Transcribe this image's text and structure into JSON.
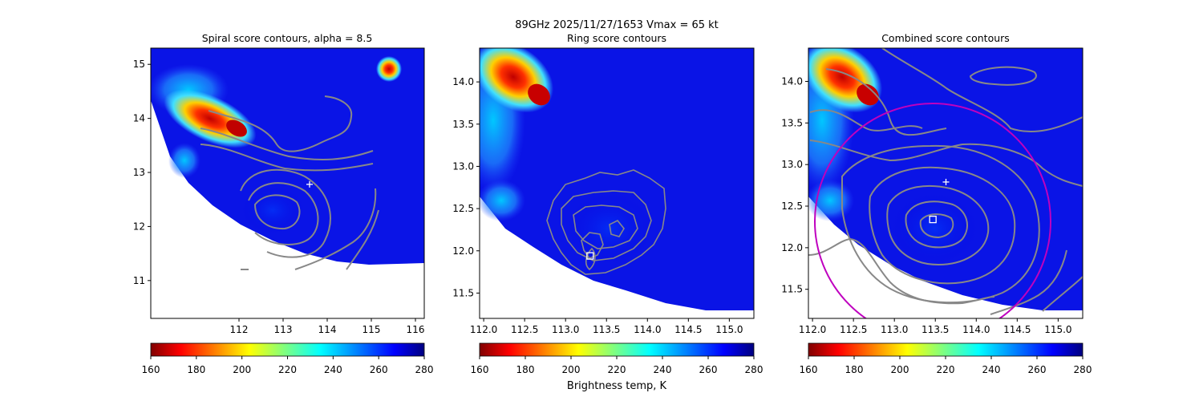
{
  "figure": {
    "suptitle_line1": "89GHz  2025/11/27/1653    Vmax = 65 kt",
    "colorbar_label": "Brightness temp, K"
  },
  "chart_data": [
    {
      "type": "heatmap",
      "title": "Spiral score contours, alpha =  8.5",
      "xlim": [
        110.0,
        116.2
      ],
      "ylim": [
        10.3,
        15.3
      ],
      "xticks": [
        112,
        113,
        114,
        115,
        116
      ],
      "yticks": [
        11,
        12,
        13,
        14,
        15
      ],
      "colormap": "jet",
      "colorbar": {
        "range": [
          160,
          280
        ],
        "ticks": [
          160,
          180,
          200,
          220,
          240,
          260,
          280
        ]
      },
      "markers": [
        {
          "symbol": "+",
          "x": 113.6,
          "y": 12.78,
          "color": "#ffffff"
        }
      ],
      "contour_color": "#808080"
    },
    {
      "type": "heatmap",
      "title": "Ring score contours",
      "xlim": [
        111.95,
        115.3
      ],
      "ylim": [
        11.2,
        14.4
      ],
      "xticks": [
        112.0,
        112.5,
        113.0,
        113.5,
        114.0,
        114.5,
        115.0
      ],
      "yticks": [
        11.5,
        12.0,
        12.5,
        13.0,
        13.5,
        14.0
      ],
      "colormap": "jet",
      "colorbar": {
        "range": [
          160,
          280
        ],
        "ticks": [
          160,
          180,
          200,
          220,
          240,
          260,
          280
        ]
      },
      "markers": [
        {
          "symbol": "square",
          "x": 113.3,
          "y": 11.94,
          "color": "#ffffff"
        }
      ],
      "contour_color": "#808080"
    },
    {
      "type": "heatmap",
      "title": "Combined score contours",
      "xlim": [
        111.95,
        115.3
      ],
      "ylim": [
        11.15,
        14.4
      ],
      "xticks": [
        112.0,
        112.5,
        113.0,
        113.5,
        114.0,
        114.5,
        115.0
      ],
      "yticks": [
        11.5,
        12.0,
        12.5,
        13.0,
        13.5,
        14.0
      ],
      "colormap": "jet",
      "colorbar": {
        "range": [
          160,
          280
        ],
        "ticks": [
          160,
          180,
          200,
          220,
          240,
          260,
          280
        ]
      },
      "markers": [
        {
          "symbol": "+",
          "x": 113.63,
          "y": 12.79,
          "color": "#ffffff"
        },
        {
          "symbol": "square",
          "x": 113.47,
          "y": 12.34,
          "color": "#ffffff"
        }
      ],
      "ring": {
        "cx": 113.47,
        "cy": 12.34,
        "rx": 1.4,
        "ry": 1.4,
        "color": "#bf00bf"
      },
      "contour_color": "#808080"
    }
  ]
}
